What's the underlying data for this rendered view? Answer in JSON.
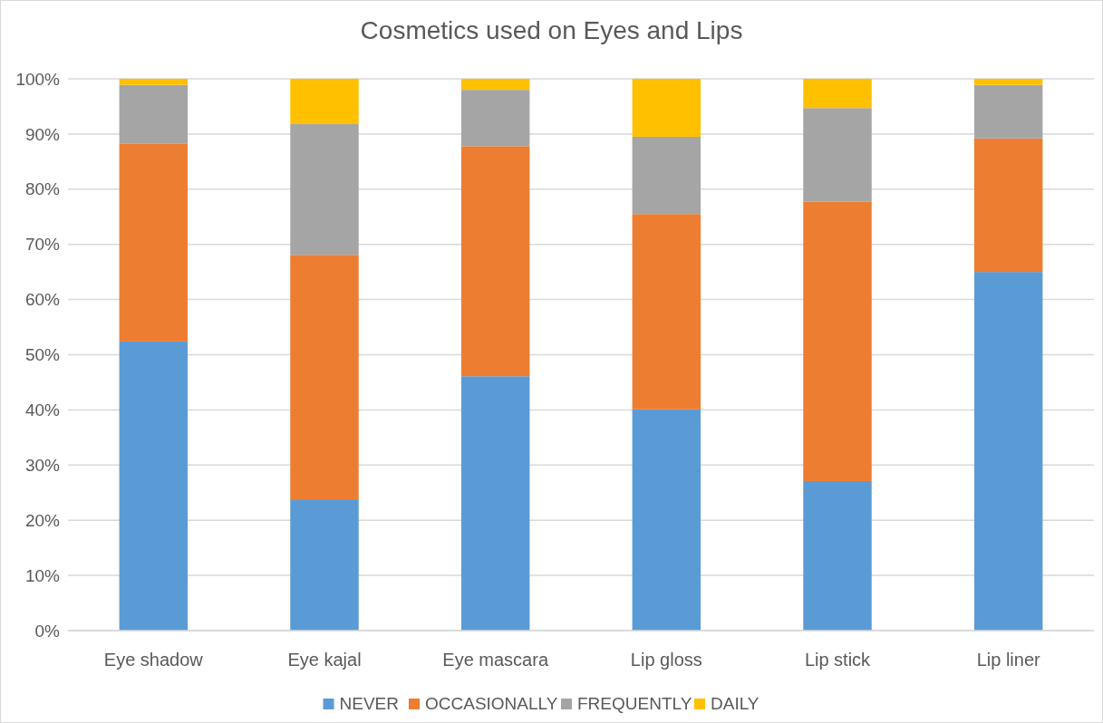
{
  "chart_data": {
    "type": "bar",
    "title": "Cosmetics used on Eyes and Lips",
    "stacked": true,
    "categories": [
      "Eye shadow",
      "Eye kajal",
      "Eye mascara",
      "Lip gloss",
      "Lip stick",
      "Lip liner"
    ],
    "series": [
      {
        "name": "NEVER",
        "color": "#5b9bd5",
        "values": [
          52.4,
          23.8,
          46.1,
          40.1,
          27.1,
          65.0
        ]
      },
      {
        "name": "OCCASIONALLY",
        "color": "#ed7d31",
        "values": [
          35.8,
          44.3,
          41.7,
          35.4,
          50.6,
          24.2
        ]
      },
      {
        "name": "FREQUENTLY",
        "color": "#a5a5a5",
        "values": [
          10.7,
          23.7,
          10.2,
          14.0,
          17.0,
          9.7
        ]
      },
      {
        "name": "DAILY",
        "color": "#ffc000",
        "values": [
          1.1,
          8.2,
          2.0,
          10.5,
          5.3,
          1.1
        ]
      }
    ],
    "ylim": [
      0,
      100
    ],
    "yticks": [
      {
        "value": 0,
        "label": "0%"
      },
      {
        "value": 10,
        "label": "10%"
      },
      {
        "value": 20,
        "label": "20%"
      },
      {
        "value": 30,
        "label": "30%"
      },
      {
        "value": 40,
        "label": "40%"
      },
      {
        "value": 50,
        "label": "50%"
      },
      {
        "value": 60,
        "label": "60%"
      },
      {
        "value": 70,
        "label": "70%"
      },
      {
        "value": 80,
        "label": "80%"
      },
      {
        "value": 90,
        "label": "90%"
      },
      {
        "value": 100,
        "label": "100%"
      }
    ],
    "grid": "y",
    "legend": "bottom"
  }
}
